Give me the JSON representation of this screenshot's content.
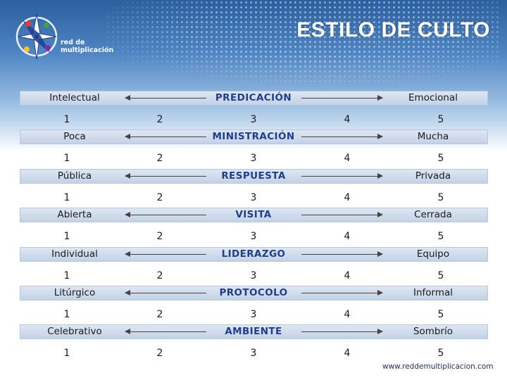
{
  "header": {
    "title": "ESTILO DE CULTO",
    "logo_line1": "red de",
    "logo_line2": "multiplicación"
  },
  "scale_numbers": [
    "1",
    "2",
    "3",
    "4",
    "5"
  ],
  "rows": [
    {
      "left": "Intelectual",
      "center": "PREDICACIÓN",
      "right": "Emocional"
    },
    {
      "left": "Poca",
      "center": "MINISTRACIÓN",
      "right": "Mucha"
    },
    {
      "left": "Pública",
      "center": "RESPUESTA",
      "right": "Privada"
    },
    {
      "left": "Abierta",
      "center": "VISITA",
      "right": "Cerrada"
    },
    {
      "left": "Individual",
      "center": "LIDERAZGO",
      "right": "Equipo"
    },
    {
      "left": "Litúrgico",
      "center": "PROTOCOLO",
      "right": "Informal"
    },
    {
      "left": "Celebrativo",
      "center": "AMBIENTE",
      "right": "Sombrío"
    }
  ],
  "footer": {
    "url": "www.reddemultiplicacion.com"
  },
  "colors": {
    "accent": "#1f3f8e",
    "band": "#c9d6e8",
    "header": "#2b5f9e"
  },
  "icons": {
    "logo": "compass-star-logo-icon"
  }
}
